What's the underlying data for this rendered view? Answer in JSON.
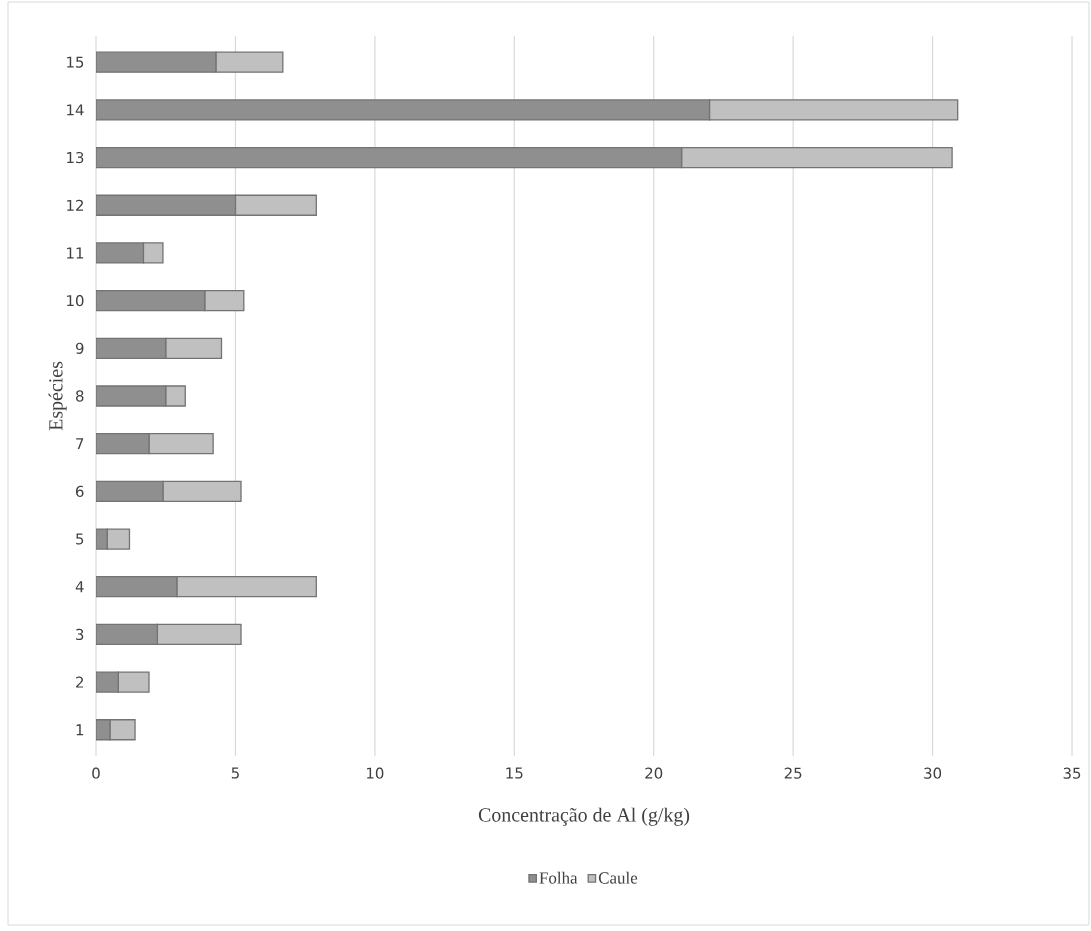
{
  "chart_data": {
    "type": "bar",
    "orientation": "horizontal",
    "stacked": true,
    "categories": [
      "15",
      "14",
      "13",
      "12",
      "11",
      "10",
      "9",
      "8",
      "7",
      "6",
      "5",
      "4",
      "3",
      "2",
      "1"
    ],
    "series": [
      {
        "name": "Folha",
        "color": "#8f8f8f",
        "values": [
          4.3,
          22.0,
          21.0,
          5.0,
          1.7,
          3.9,
          2.5,
          2.5,
          1.9,
          2.4,
          0.4,
          2.9,
          2.2,
          0.8,
          0.5
        ]
      },
      {
        "name": "Caule",
        "color": "#c0c0c0",
        "values": [
          2.4,
          8.9,
          9.7,
          2.9,
          0.7,
          1.4,
          2.0,
          0.7,
          2.3,
          2.8,
          0.8,
          5.0,
          3.0,
          1.1,
          0.9
        ]
      }
    ],
    "xlim": [
      0,
      35
    ],
    "xticks": [
      0,
      5,
      10,
      15,
      20,
      25,
      30,
      35
    ],
    "xlabel": "Concentração de Al (g/kg)",
    "ylabel": "Espécies",
    "grid": "x",
    "legend": "bottom"
  }
}
